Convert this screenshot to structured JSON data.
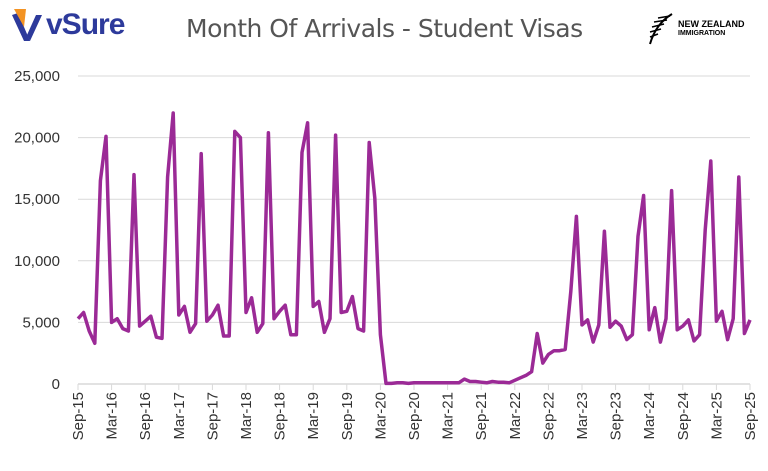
{
  "header": {
    "brand": "vSure",
    "partner_line1": "NEW ZEALAND",
    "partner_line2": "IMMIGRATION"
  },
  "colors": {
    "line": "#9b2a96",
    "grid": "#d9d9d9",
    "brand_orange": "#f39323",
    "brand_blue": "#2d3a9b"
  },
  "chart_data": {
    "type": "line",
    "title": "Month Of Arrivals - Student Visas",
    "xlabel": "",
    "ylabel": "",
    "ylim": [
      0,
      25000
    ],
    "yticks": [
      "0",
      "5,000",
      "10,000",
      "15,000",
      "20,000",
      "25,000"
    ],
    "grid": true,
    "start": "Sep-15",
    "xticks": [
      "Sep-15",
      "Mar-16",
      "Sep-16",
      "Mar-17",
      "Sep-17",
      "Mar-18",
      "Sep-18",
      "Mar-19",
      "Sep-19",
      "Mar-20",
      "Sep-20",
      "Mar-21",
      "Sep-21",
      "Mar-22",
      "Sep-22",
      "Mar-23",
      "Sep-23",
      "Mar-24",
      "Sep-24",
      "Mar-25",
      "Sep-25"
    ],
    "series": [
      {
        "values": [
          5300,
          5800,
          4300,
          3300,
          16500,
          20100,
          5000,
          5300,
          4500,
          4300,
          17000,
          4700,
          5100,
          5500,
          3800,
          3700,
          16800,
          22000,
          5600,
          6300,
          4200,
          4900,
          18700,
          5100,
          5600,
          6400,
          3900,
          3900,
          20500,
          20000,
          5800,
          7000,
          4200,
          4900,
          20400,
          5300,
          5900,
          6400,
          4000,
          4000,
          18800,
          21200,
          6300,
          6700,
          4200,
          5300,
          20200,
          5800,
          5900,
          7100,
          4500,
          4300,
          19600,
          15100,
          4000,
          50,
          50,
          100,
          100,
          50,
          100,
          100,
          100,
          100,
          100,
          100,
          100,
          100,
          100,
          400,
          200,
          200,
          150,
          100,
          200,
          150,
          150,
          100,
          300,
          500,
          700,
          1000,
          4100,
          1700,
          2400,
          2700,
          2700,
          2800,
          7500,
          13600,
          4800,
          5200,
          3400,
          4800,
          12400,
          4600,
          5100,
          4700,
          3600,
          4000,
          12000,
          15300,
          4400,
          6200,
          3400,
          5300,
          15700,
          4400,
          4700,
          5200,
          3500,
          4000,
          12500,
          18100,
          5100,
          5900,
          3600,
          5300,
          16800,
          4100,
          5200
        ]
      }
    ]
  }
}
